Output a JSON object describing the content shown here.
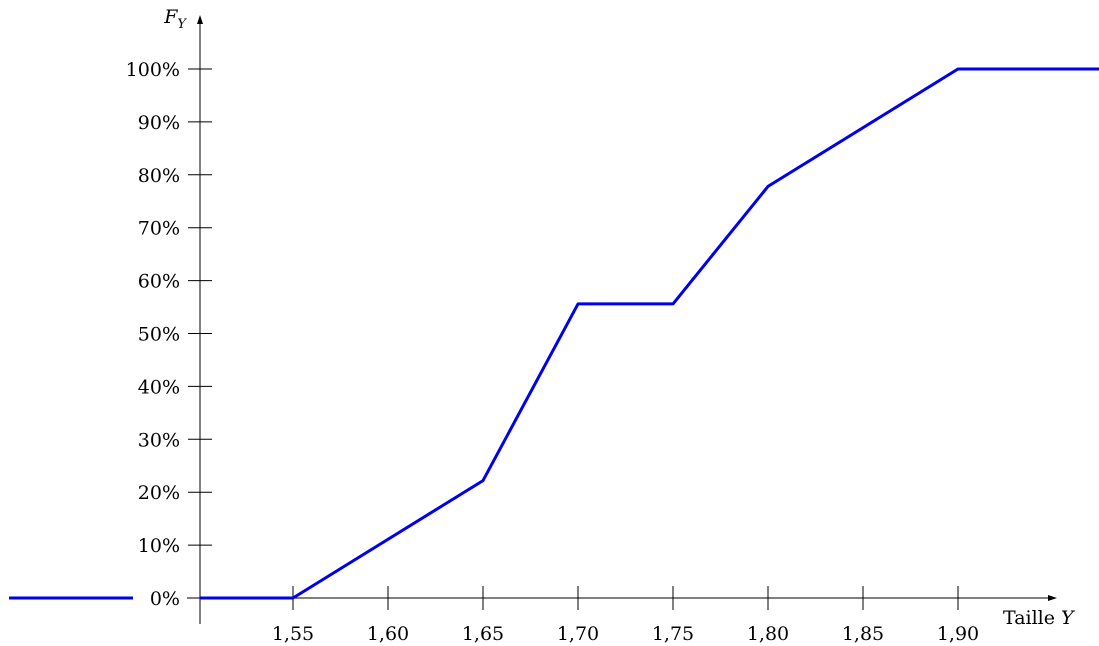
{
  "chart_data": {
    "type": "line",
    "xlabel_text": "Taille",
    "xlabel_var": "Y",
    "ylabel_main": "F",
    "ylabel_sub": "Y",
    "x_ticks": [
      "1,55",
      "1,60",
      "1,65",
      "1,70",
      "1,75",
      "1,80",
      "1,85",
      "1,90"
    ],
    "x_tick_values": [
      1.55,
      1.6,
      1.65,
      1.7,
      1.75,
      1.8,
      1.85,
      1.9
    ],
    "y_ticks": [
      "0%",
      "10%",
      "20%",
      "30%",
      "40%",
      "50%",
      "60%",
      "70%",
      "80%",
      "90%",
      "100%"
    ],
    "y_tick_values": [
      0,
      10,
      20,
      30,
      40,
      50,
      60,
      70,
      80,
      90,
      100
    ],
    "xlim": [
      1.5,
      1.96
    ],
    "ylim": [
      0,
      100
    ],
    "series": [
      {
        "color": "#0000ee",
        "x": [
          1.5,
          1.55,
          1.65,
          1.7,
          1.75,
          1.8,
          1.9,
          1.96
        ],
        "y": [
          0,
          0,
          22.2,
          55.6,
          55.6,
          77.8,
          100,
          100
        ]
      }
    ],
    "left_extension": {
      "y": 0,
      "color": "#0000ee"
    },
    "grid": false
  }
}
